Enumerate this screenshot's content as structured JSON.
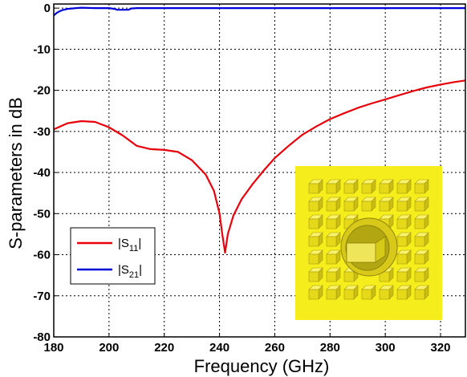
{
  "chart_data": {
    "type": "line",
    "xlabel": "Frequency (GHz)",
    "ylabel": "S-parameters in dB",
    "xlim": [
      180,
      329
    ],
    "ylim": [
      -80,
      1
    ],
    "xticks": [
      "180",
      "200",
      "220",
      "240",
      "260",
      "280",
      "300",
      "320"
    ],
    "yticks": [
      "0",
      "-10",
      "-20",
      "-30",
      "-40",
      "-50",
      "-60",
      "-70",
      "-80"
    ],
    "grid": true,
    "legend_position": "bottom-left",
    "series": [
      {
        "name": "|S11|",
        "legend_main": "|S",
        "legend_sub": "11",
        "legend_tail": "|",
        "color": "#e8000b",
        "x": [
          180,
          185,
          190,
          195,
          200,
          205,
          210,
          215,
          220,
          225,
          230,
          235,
          238,
          240,
          241,
          242,
          243,
          245,
          248,
          252,
          256,
          260,
          265,
          270,
          275,
          280,
          285,
          290,
          295,
          300,
          305,
          310,
          315,
          320,
          325,
          329
        ],
        "y": [
          -29.5,
          -28.0,
          -27.5,
          -27.7,
          -29.0,
          -31.0,
          -33.5,
          -34.3,
          -34.5,
          -35.0,
          -37.0,
          -40.5,
          -44.5,
          -50.0,
          -55.0,
          -59.5,
          -55.0,
          -50.5,
          -46.5,
          -42.8,
          -39.5,
          -36.5,
          -33.5,
          -30.8,
          -28.8,
          -27.0,
          -25.6,
          -24.3,
          -23.2,
          -22.2,
          -21.2,
          -20.2,
          -19.3,
          -18.6,
          -18.0,
          -17.6
        ]
      },
      {
        "name": "|S21|",
        "legend_main": "|S",
        "legend_sub": "21",
        "legend_tail": "|",
        "color": "#0000d8",
        "x": [
          180,
          181,
          182,
          183,
          185,
          188,
          190,
          195,
          200,
          202,
          203,
          205,
          207,
          208,
          210,
          220,
          240,
          260,
          280,
          300,
          320,
          329
        ],
        "y": [
          -1.8,
          -1.2,
          -0.8,
          -0.5,
          -0.2,
          0.0,
          0.1,
          0.0,
          0.0,
          -0.2,
          -0.4,
          -0.4,
          -0.4,
          -0.1,
          0.0,
          0.0,
          0.0,
          0.0,
          0.0,
          0.0,
          0.0,
          0.0
        ]
      }
    ],
    "inset": {
      "background": "#f6ee1c",
      "cube_color": "#e6d91a",
      "ring_color": "#d7c81a"
    }
  }
}
